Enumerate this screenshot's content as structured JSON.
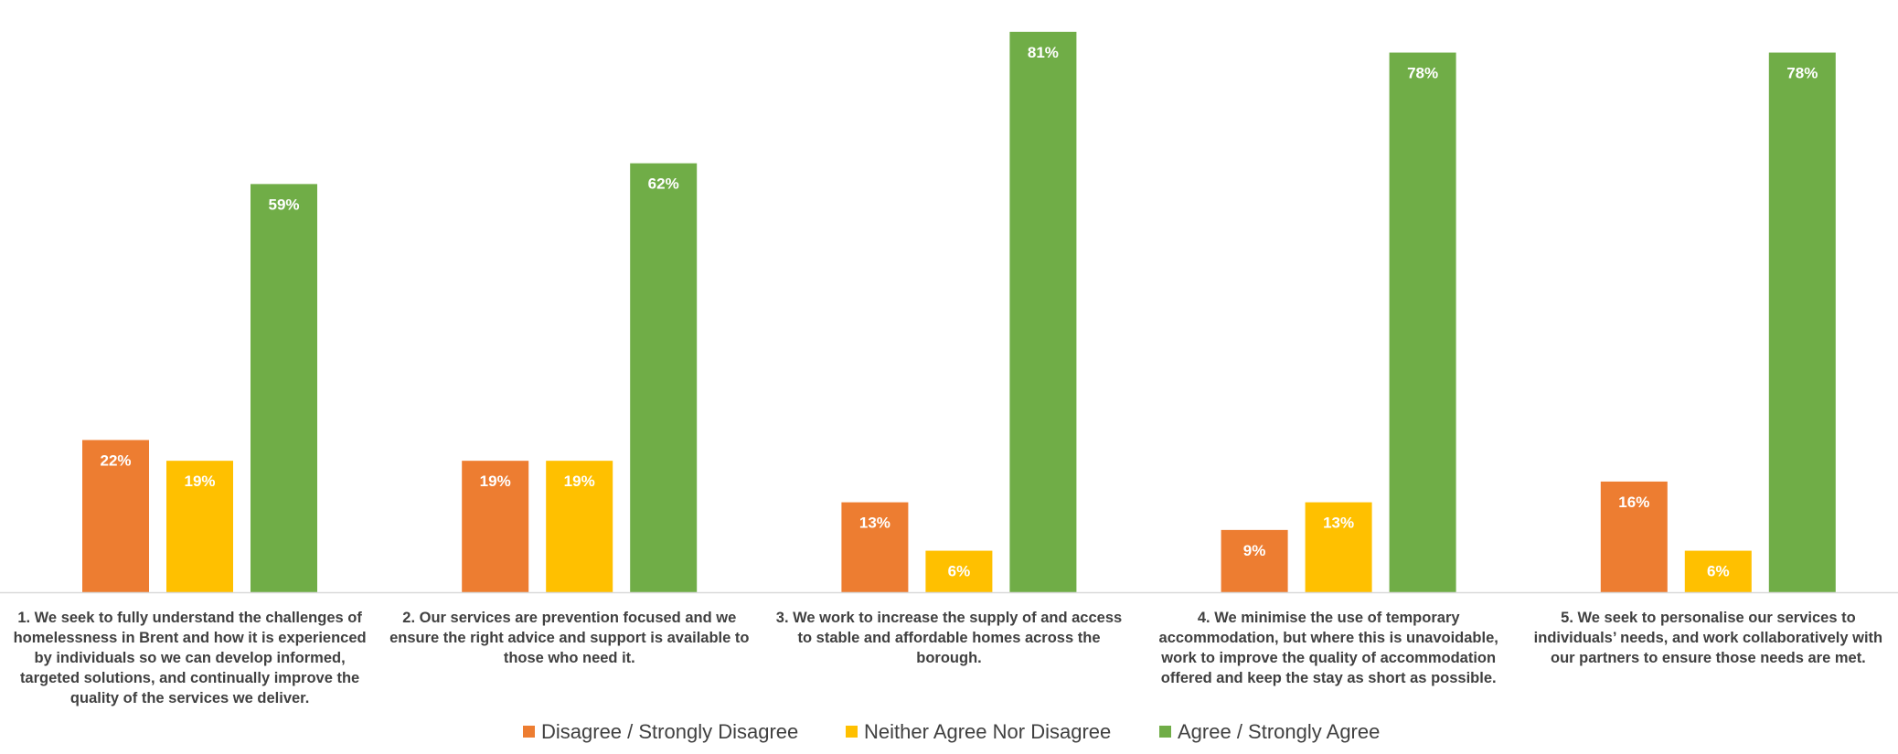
{
  "chart_data": {
    "type": "bar",
    "title": "",
    "xlabel": "",
    "ylabel": "",
    "ylim": [
      0,
      82
    ],
    "grid": false,
    "legend_position": "bottom",
    "categories": [
      [
        "1. We seek to fully understand the challenges of",
        "homelessness in Brent and how it is experienced",
        "by individuals so we can develop informed,",
        "targeted solutions, and continually improve the",
        "quality of the services we deliver."
      ],
      [
        "2. Our services are prevention focused and we",
        "ensure the right advice and support is available to",
        "those who need it."
      ],
      [
        "3. We work to increase the supply of and access",
        "to stable and affordable homes across the",
        "borough."
      ],
      [
        "4. We minimise the use of temporary",
        "accommodation, but where this is unavoidable,",
        "work to improve the quality of accommodation",
        "offered and keep the stay as short as possible."
      ],
      [
        "5. We seek to personalise our services to",
        "individuals’ needs, and work collaboratively with",
        "our partners to ensure those needs are met."
      ]
    ],
    "series": [
      {
        "name": "Disagree / Strongly Disagree",
        "color": "#ED7D31",
        "values": [
          22,
          19,
          13,
          9,
          16
        ],
        "labels": [
          "22%",
          "19%",
          "13%",
          "9%",
          "16%"
        ]
      },
      {
        "name": "Neither Agree Nor Disagree",
        "color": "#FFC000",
        "values": [
          19,
          19,
          6,
          13,
          6
        ],
        "labels": [
          "19%",
          "19%",
          "6%",
          "13%",
          "6%"
        ]
      },
      {
        "name": "Agree / Strongly Agree",
        "color": "#70AD47",
        "values": [
          59,
          62,
          81,
          78,
          78
        ],
        "labels": [
          "59%",
          "62%",
          "81%",
          "78%",
          "78%"
        ]
      }
    ]
  },
  "colors": {
    "axis": "#D9D9D9",
    "label_text": "#404040",
    "data_label_text": "#FFFFFF"
  }
}
